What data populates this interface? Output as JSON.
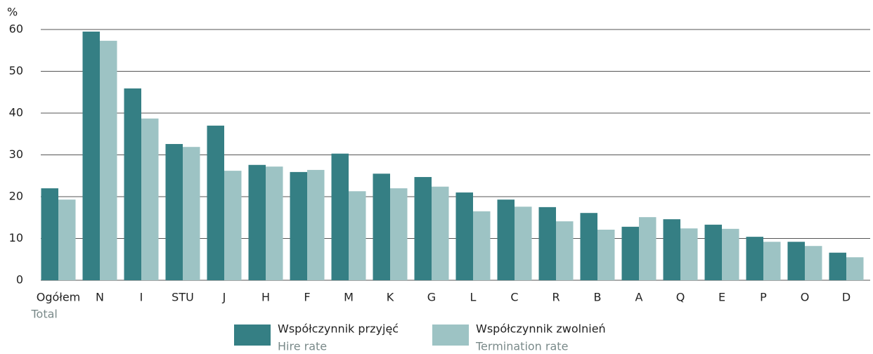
{
  "chart_data": {
    "type": "bar",
    "y_unit": "%",
    "categories": [
      "Ogółem",
      "N",
      "I",
      "STU",
      "J",
      "H",
      "F",
      "M",
      "K",
      "G",
      "L",
      "C",
      "R",
      "B",
      "A",
      "Q",
      "E",
      "P",
      "O",
      "D"
    ],
    "category_sublabels": [
      "Total",
      null,
      null,
      null,
      null,
      null,
      null,
      null,
      null,
      null,
      null,
      null,
      null,
      null,
      null,
      null,
      null,
      null,
      null,
      null
    ],
    "series": [
      {
        "name": "Współczynnik przyjęć",
        "name_en": "Hire rate",
        "color": "#357f84",
        "values": [
          22.0,
          59.5,
          45.9,
          32.6,
          37.0,
          27.6,
          25.9,
          30.3,
          25.5,
          24.7,
          21.0,
          19.3,
          17.5,
          16.1,
          12.8,
          14.6,
          13.3,
          10.4,
          9.2,
          6.6
        ]
      },
      {
        "name": "Współczynnik zwolnień",
        "name_en": "Termination rate",
        "color": "#9dc3c4",
        "values": [
          19.3,
          57.3,
          38.7,
          31.9,
          26.2,
          27.2,
          26.4,
          21.3,
          22.0,
          22.4,
          16.5,
          17.6,
          14.1,
          12.1,
          15.1,
          12.4,
          12.3,
          9.2,
          8.2,
          5.5
        ]
      }
    ],
    "ylim": [
      0,
      60
    ],
    "yticks": [
      0,
      10,
      20,
      30,
      40,
      50,
      60
    ],
    "grid": true
  }
}
